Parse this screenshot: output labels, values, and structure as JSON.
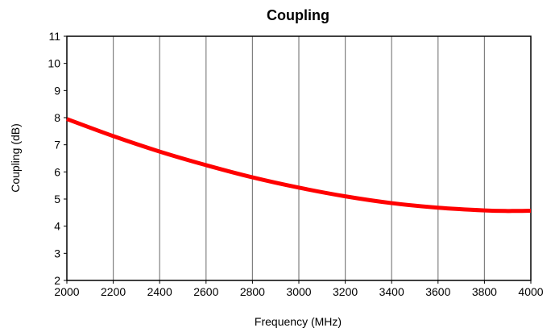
{
  "chart_data": {
    "type": "line",
    "title": "Coupling",
    "xlabel": "Frequency (MHz)",
    "ylabel": "Coupling (dB)",
    "xlim": [
      2000,
      4000
    ],
    "ylim": [
      2,
      11
    ],
    "x_ticks": [
      2000,
      2200,
      2400,
      2600,
      2800,
      3000,
      3200,
      3400,
      3600,
      3800,
      4000
    ],
    "y_ticks": [
      2,
      3,
      4,
      5,
      6,
      7,
      8,
      9,
      10,
      11
    ],
    "grid": "vertical",
    "legend": "none",
    "series": [
      {
        "color": "#ff0000",
        "x": [
          2000,
          2200,
          2400,
          2600,
          2800,
          3000,
          3200,
          3400,
          3600,
          3800,
          3900,
          4000
        ],
        "y": [
          7.95,
          7.32,
          6.75,
          6.25,
          5.8,
          5.42,
          5.1,
          4.85,
          4.68,
          4.58,
          4.56,
          4.57
        ]
      }
    ]
  }
}
